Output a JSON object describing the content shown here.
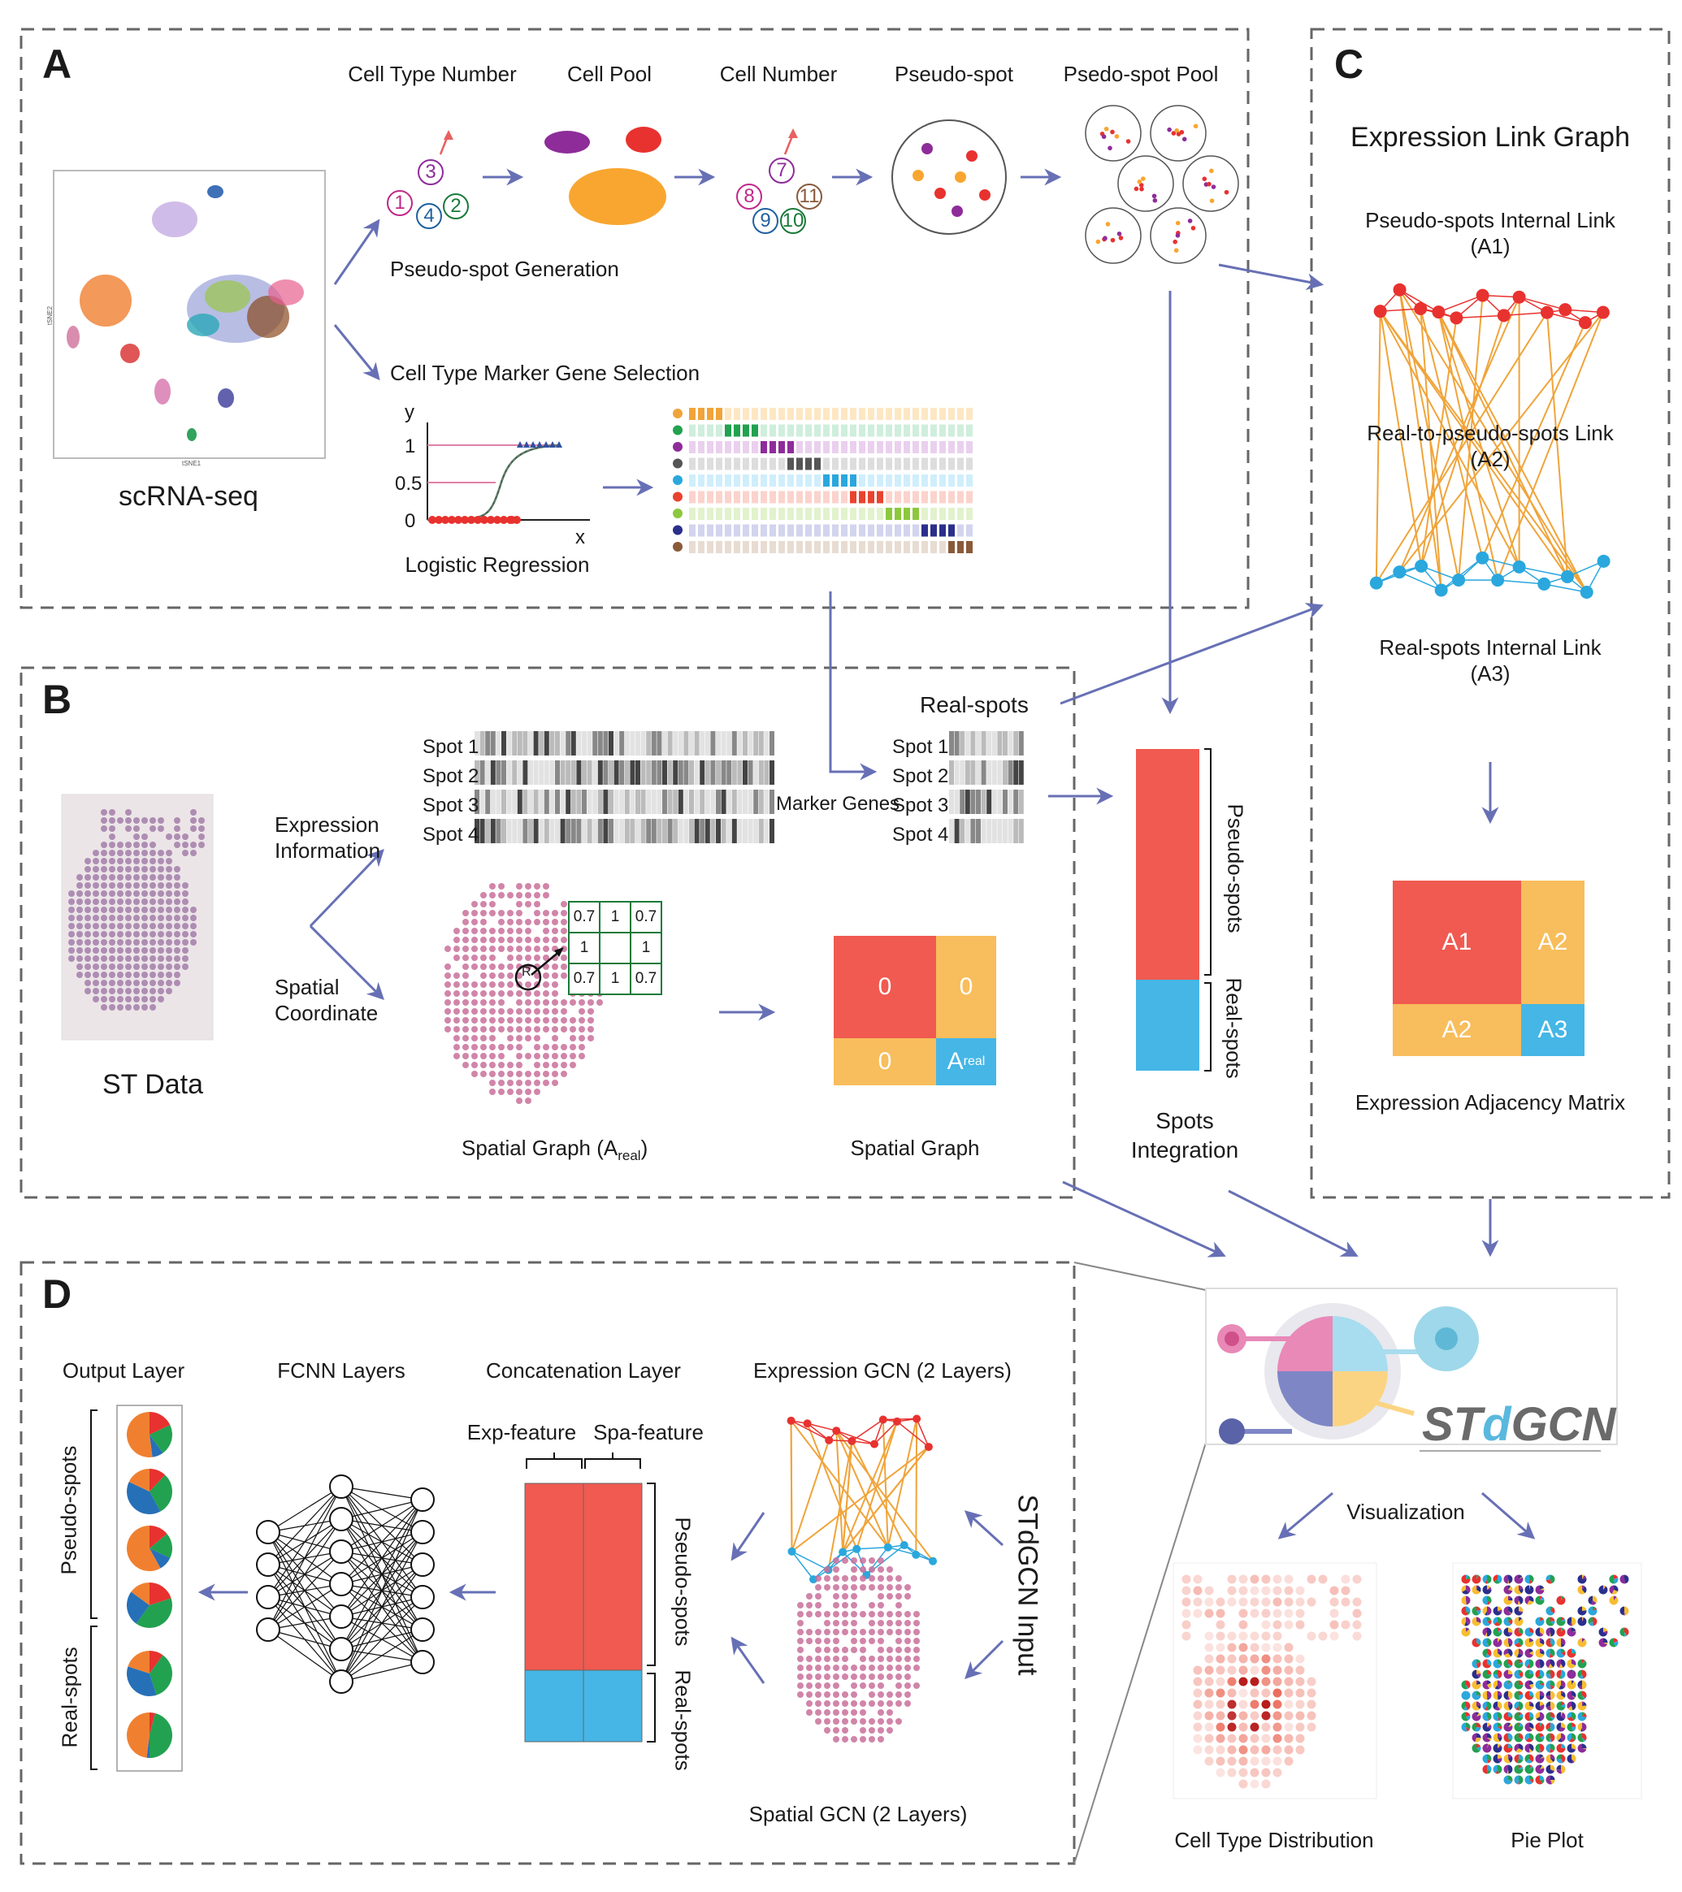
{
  "panels": {
    "a": "A",
    "b": "B",
    "c": "C",
    "d": "D"
  },
  "panel_a": {
    "headers": [
      "Cell Type Number",
      "Cell Pool",
      "Cell Number",
      "Pseudo-spot",
      "Psedo-spot Pool"
    ],
    "pseudo_spot_generation": "Pseudo-spot Generation",
    "marker_selection": "Cell Type Marker Gene Selection",
    "scrna": "scRNA-seq",
    "tsne_x": "tSNE1",
    "tsne_y": "tSNE2",
    "logistic_regression": "Logistic Regression",
    "lr_y": "y",
    "lr_x": "x",
    "lr_ticks": [
      "1",
      "0.5",
      "0"
    ],
    "type_numbers": [
      "1",
      "3",
      "4",
      "2"
    ],
    "cell_numbers": [
      "7",
      "8",
      "11",
      "9",
      "10"
    ],
    "marker_colors": [
      "#f0a43a",
      "#22a150",
      "#8e2c9a",
      "#555555",
      "#2aa7dd",
      "#e8432f",
      "#8cc83c",
      "#2b2f8c",
      "#8a5a3a"
    ]
  },
  "panel_b": {
    "expression_info": [
      "Expression",
      "Information"
    ],
    "spatial_coord": [
      "Spatial",
      "Coordinate"
    ],
    "st_data": "ST Data",
    "spots": [
      "Spot 1",
      "Spot 2",
      "Spot 3",
      "Spot 4"
    ],
    "marker_genes": "Marker Genes",
    "real_spots": "Real-spots",
    "spatial_graph_areal": "Spatial Graph (A",
    "areal_sub": "real",
    "areal_close": ")",
    "spatial_graph": "Spatial Graph",
    "grid_values": [
      "0.7",
      "1",
      "0.7",
      "1",
      "",
      "1",
      "0.7",
      "1",
      "0.7"
    ],
    "grid_center": "R",
    "matrix": {
      "tl": "0",
      "tr": "0",
      "bl": "0",
      "br_main": "A",
      "br_sub": "real"
    },
    "spots_integration": [
      "Spots",
      "Integration"
    ],
    "pseudo_spots": "Pseudo-spots",
    "real_spots_v": "Real-spots"
  },
  "panel_c": {
    "title": "Expression Link Graph",
    "internal_pseudo": [
      "Pseudo-spots Internal Link",
      "(A1)"
    ],
    "real_to_pseudo": [
      "Real-to-pseudo-spots Link",
      "(A2)"
    ],
    "internal_real": [
      "Real-spots Internal Link",
      "(A3)"
    ],
    "matrix": {
      "a1": "A1",
      "a2_right": "A2",
      "a2_bottom": "A2",
      "a3": "A3"
    },
    "matrix_title": "Expression Adjacency Matrix"
  },
  "panel_d": {
    "output_layer": "Output Layer",
    "fcnn": "FCNN Layers",
    "concat": "Concatenation Layer",
    "exp_gcn": "Expression GCN (2 Layers)",
    "exp_feature": "Exp-feature",
    "spa_feature": "Spa-feature",
    "pseudo_spots": "Pseudo-spots",
    "real_spots": "Real-spots",
    "spatial_gcn": "Spatial GCN (2 Layers)",
    "stdgcn_input": "STdGCN Input"
  },
  "logo": {
    "brand_main": "ST",
    "brand_d": "d",
    "brand_tail": "GCN"
  },
  "visualization": {
    "label": "Visualization",
    "cell_type_distribution": "Cell Type Distribution",
    "pie_plot": "Pie Plot"
  },
  "colors": {
    "red": "#f05a50",
    "blue": "#45b6e6",
    "orange": "#f8bd5c",
    "node_red": "#e8322f",
    "node_blue": "#2aa7dd",
    "edge_orange": "#f0a43a",
    "arrow": "#6770b5",
    "pink": "#c9709a"
  }
}
